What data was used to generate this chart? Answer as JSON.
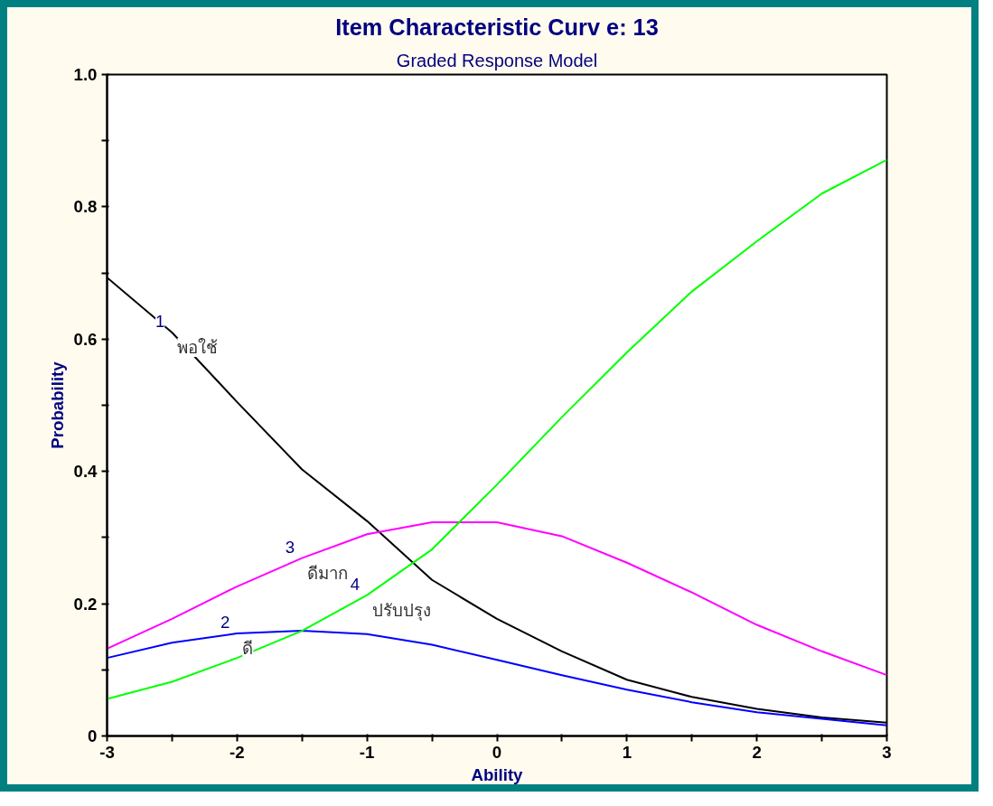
{
  "chart_data": {
    "type": "line",
    "title": "Item Characteristic Curv e: 13",
    "subtitle": "Graded Response Model",
    "xlabel": "Ability",
    "ylabel": "Probability",
    "x": [
      -3,
      -2.5,
      -2,
      -1.5,
      -1,
      -0.5,
      0,
      0.5,
      1,
      1.5,
      2,
      2.5,
      3
    ],
    "series": [
      {
        "color": "#000000",
        "values": [
          0.693,
          0.61,
          0.505,
          0.403,
          0.325,
          0.236,
          0.177,
          0.128,
          0.085,
          0.059,
          0.041,
          0.028,
          0.02
        ]
      },
      {
        "color": "#0000ff",
        "values": [
          0.118,
          0.141,
          0.155,
          0.159,
          0.154,
          0.138,
          0.115,
          0.092,
          0.07,
          0.051,
          0.036,
          0.026,
          0.016
        ]
      },
      {
        "color": "#ff00ff",
        "values": [
          0.132,
          0.177,
          0.226,
          0.269,
          0.305,
          0.323,
          0.323,
          0.302,
          0.262,
          0.217,
          0.168,
          0.128,
          0.092
        ]
      },
      {
        "color": "#00ff00",
        "values": [
          0.056,
          0.082,
          0.118,
          0.159,
          0.213,
          0.282,
          0.38,
          0.482,
          0.58,
          0.672,
          0.748,
          0.82,
          0.871
        ]
      }
    ],
    "annotations": [
      {
        "text": "1",
        "x": -2.5,
        "y": 0.61
      },
      {
        "text": "พอใช้",
        "x": -2.5,
        "y": 0.61
      },
      {
        "text": "2",
        "x": -2,
        "y": 0.155
      },
      {
        "text": "ดี",
        "x": -2,
        "y": 0.155
      },
      {
        "text": "3",
        "x": -1.5,
        "y": 0.269
      },
      {
        "text": "ดีมาก",
        "x": -1.5,
        "y": 0.269
      },
      {
        "text": "4",
        "x": -1,
        "y": 0.213
      },
      {
        "text": "ปรับปรุง",
        "x": -1,
        "y": 0.213
      }
    ],
    "xlim": [
      -3,
      3
    ],
    "xticks": [
      -3,
      {
        "value": -2.5,
        "label": null
      },
      -2,
      {
        "value": -1.5,
        "label": null
      },
      -1,
      {
        "value": -0.5,
        "label": null
      },
      0,
      {
        "value": 0.5,
        "label": null
      },
      1,
      {
        "value": 1.5,
        "label": null
      },
      2,
      {
        "value": 2.5,
        "label": null
      },
      3
    ],
    "ylim": [
      0,
      1
    ],
    "yticks": [
      0,
      {
        "value": 0.1,
        "label": null
      },
      0.2,
      {
        "value": 0.3,
        "label": null
      },
      0.4,
      {
        "value": 0.5,
        "label": null
      },
      0.6,
      {
        "value": 0.7,
        "label": null
      },
      0.8,
      {
        "value": 0.9,
        "label": null
      },
      {
        "value": 1,
        "label": "1.0"
      }
    ],
    "grid": false,
    "marker": "none",
    "line_style": "solid"
  }
}
